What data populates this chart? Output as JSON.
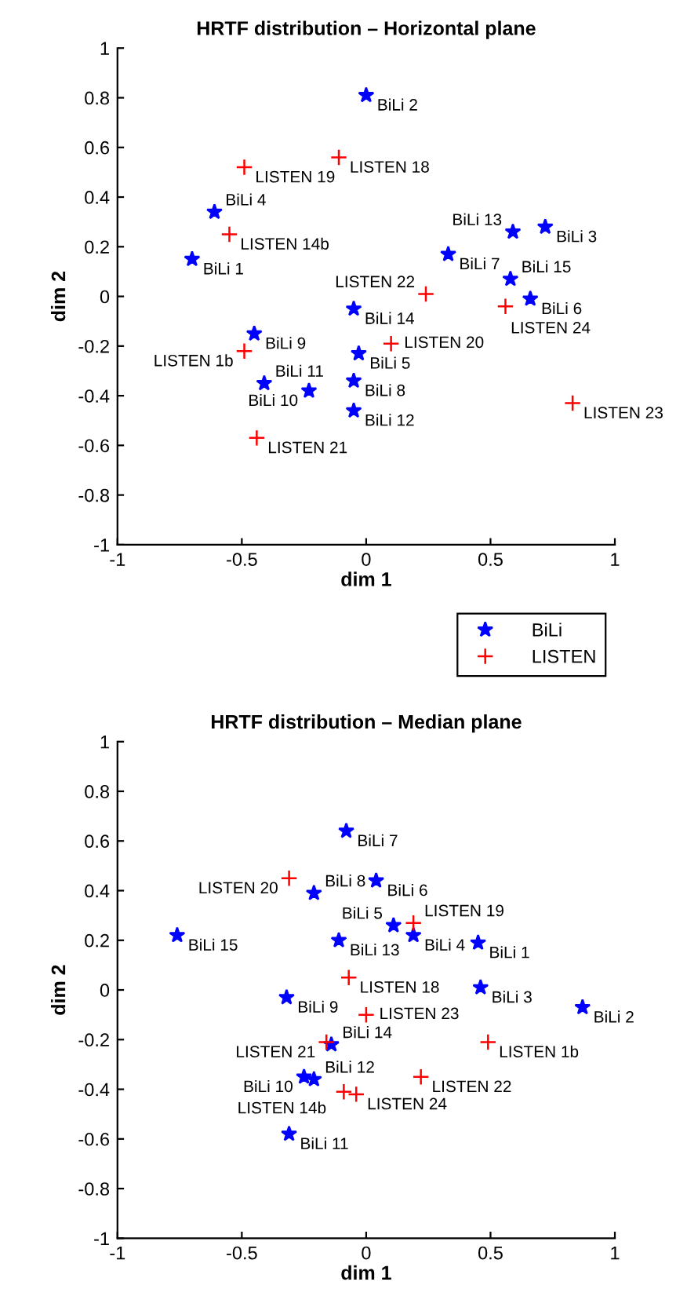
{
  "chart_data": [
    {
      "type": "scatter",
      "title": "HRTF distribution – Horizontal plane",
      "xlabel": "dim 1",
      "ylabel": "dim 2",
      "xlim": [
        -1,
        1
      ],
      "ylim": [
        -1,
        1
      ],
      "xticks": [
        -1,
        -0.5,
        0,
        0.5,
        1
      ],
      "yticks": [
        -1,
        -0.8,
        -0.6,
        -0.4,
        -0.2,
        0,
        0.2,
        0.4,
        0.6,
        0.8,
        1
      ],
      "grid": false,
      "legend": "bottom right",
      "series": [
        {
          "name": "BiLi",
          "color": "#0000ff",
          "marker": "star",
          "x": [
            -0.7,
            0.0,
            0.72,
            -0.61,
            -0.03,
            0.66,
            0.33,
            -0.05,
            -0.45,
            -0.23,
            -0.41,
            -0.05,
            0.59,
            -0.05,
            0.58
          ],
          "values": [
            0.15,
            0.81,
            0.28,
            0.34,
            -0.23,
            -0.01,
            0.17,
            -0.34,
            -0.15,
            -0.38,
            -0.35,
            -0.46,
            0.26,
            -0.05,
            0.07
          ],
          "value_labels": [
            "BiLi 1",
            "BiLi 2",
            "BiLi 3",
            "BiLi 4",
            "BiLi 5",
            "BiLi 6",
            "BiLi 7",
            "BiLi 8",
            "BiLi 9",
            "BiLi 10",
            "BiLi 11",
            "BiLi 12",
            "BiLi 13",
            "BiLi 14",
            "BiLi 15"
          ]
        },
        {
          "name": "LISTEN",
          "color": "#ff0000",
          "marker": "cross",
          "x": [
            -0.49,
            -0.11,
            -0.55,
            0.24,
            0.56,
            0.1,
            -0.49,
            -0.44,
            0.83
          ],
          "values": [
            0.52,
            0.56,
            0.25,
            0.01,
            -0.04,
            -0.19,
            -0.22,
            -0.57,
            -0.43
          ],
          "value_labels": [
            "LISTEN 19",
            "LISTEN 18",
            "LISTEN 14b",
            "LISTEN 22",
            "LISTEN 24",
            "LISTEN 20",
            "LISTEN 1b",
            "LISTEN 21",
            "LISTEN 23"
          ]
        }
      ]
    },
    {
      "type": "scatter",
      "title": "HRTF distribution – Median plane",
      "xlabel": "dim 1",
      "ylabel": "dim 2",
      "xlim": [
        -1,
        1
      ],
      "ylim": [
        -1,
        1
      ],
      "xticks": [
        -1,
        -0.5,
        0,
        0.5,
        1
      ],
      "yticks": [
        -1,
        -0.8,
        -0.6,
        -0.4,
        -0.2,
        0,
        0.2,
        0.4,
        0.6,
        0.8,
        1
      ],
      "grid": false,
      "series": [
        {
          "color": "#0000ff",
          "marker": "star",
          "x": [
            0.45,
            0.87,
            0.46,
            0.19,
            0.11,
            0.04,
            -0.08,
            -0.21,
            -0.32,
            -0.25,
            -0.31,
            -0.21,
            -0.11,
            -0.14,
            -0.76
          ],
          "values": [
            0.19,
            -0.07,
            0.01,
            0.22,
            0.26,
            0.44,
            0.64,
            0.39,
            -0.03,
            -0.35,
            -0.58,
            -0.36,
            0.2,
            -0.22,
            0.22
          ],
          "value_labels": [
            "BiLi 1",
            "BiLi 2",
            "BiLi 3",
            "BiLi 4",
            "BiLi 5",
            "BiLi 6",
            "BiLi 7",
            "BiLi 8",
            "BiLi 9",
            "BiLi 10",
            "BiLi 11",
            "BiLi 12",
            "BiLi 13",
            "BiLi 14",
            "BiLi 15"
          ]
        },
        {
          "color": "#ff0000",
          "marker": "cross",
          "x": [
            -0.31,
            0.19,
            -0.07,
            0.0,
            -0.16,
            0.49,
            0.22,
            -0.09,
            -0.04
          ],
          "values": [
            0.45,
            0.27,
            0.05,
            -0.1,
            -0.21,
            -0.21,
            -0.35,
            -0.41,
            -0.42
          ],
          "value_labels": [
            "LISTEN 20",
            "LISTEN 19",
            "LISTEN 18",
            "LISTEN 23",
            "LISTEN 21",
            "LISTEN 1b",
            "LISTEN 22",
            "LISTEN 14b",
            "LISTEN 24"
          ]
        }
      ]
    }
  ]
}
